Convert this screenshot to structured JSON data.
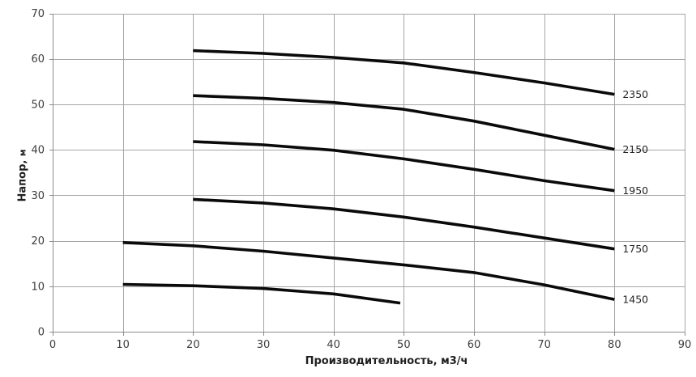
{
  "chart_data": {
    "type": "line",
    "title": "",
    "xlabel": "Производительность,  м3/ч",
    "ylabel": "Напор, м",
    "ylabel_text": "Напор,",
    "ylabel_unit": "м",
    "xlim": [
      0,
      90
    ],
    "ylim": [
      0,
      70
    ],
    "xticks": [
      0,
      10,
      20,
      30,
      40,
      50,
      60,
      70,
      80,
      90
    ],
    "yticks": [
      0,
      10,
      20,
      30,
      40,
      50,
      60,
      70
    ],
    "grid": true,
    "legend_position": "labels-at-line-ends",
    "colors": {
      "line": "#0a0a0a",
      "grid": "#a6a6a6",
      "axis": "#8c8c8c",
      "tick_text": "#3d3d3d",
      "label_text": "#262626",
      "background": "#ffffff"
    },
    "series": [
      {
        "name": "curve-2350",
        "label": "2350",
        "x": [
          20,
          30,
          40,
          50,
          60,
          70,
          80
        ],
        "y": [
          61.8,
          61.2,
          60.3,
          59.1,
          57.0,
          54.7,
          52.2
        ]
      },
      {
        "name": "curve-2150",
        "label": "2150",
        "x": [
          20,
          30,
          40,
          50,
          60,
          70,
          80
        ],
        "y": [
          51.9,
          51.3,
          50.4,
          48.9,
          46.3,
          43.2,
          40.1
        ]
      },
      {
        "name": "curve-1950",
        "label": "1950",
        "x": [
          20,
          30,
          40,
          50,
          60,
          70,
          80
        ],
        "y": [
          41.8,
          41.1,
          39.9,
          38.0,
          35.7,
          33.2,
          31.0
        ]
      },
      {
        "name": "curve-1750",
        "label": "1750",
        "x": [
          20,
          30,
          40,
          50,
          60,
          70,
          80
        ],
        "y": [
          29.1,
          28.3,
          27.0,
          25.2,
          23.0,
          20.6,
          18.2
        ]
      },
      {
        "name": "curve-1450",
        "label": "1450",
        "x": [
          10,
          20,
          30,
          40,
          50,
          60,
          70,
          80
        ],
        "y": [
          19.6,
          18.9,
          17.7,
          16.2,
          14.7,
          13.0,
          10.3,
          7.1
        ]
      },
      {
        "name": "curve-unlabeled-bottom",
        "label": "",
        "x": [
          10,
          20,
          30,
          40,
          49.5
        ],
        "y": [
          10.4,
          10.1,
          9.5,
          8.3,
          6.3
        ]
      }
    ]
  }
}
